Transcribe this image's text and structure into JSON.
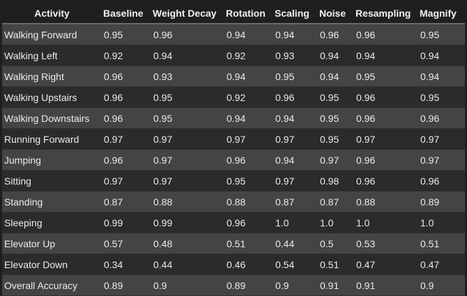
{
  "table": {
    "headers": [
      "Activity",
      "Baseline",
      "Weight Decay",
      "Rotation",
      "Scaling",
      "Noise",
      "Resampling",
      "Magnify"
    ],
    "rows": [
      [
        "Walking Forward",
        "0.95",
        "0.96",
        "0.94",
        "0.94",
        "0.96",
        "0.96",
        "0.95"
      ],
      [
        "Walking Left",
        "0.92",
        "0.94",
        "0.92",
        "0.93",
        "0.94",
        "0.94",
        "0.94"
      ],
      [
        "Walking Right",
        "0.96",
        "0.93",
        "0.94",
        "0.95",
        "0.94",
        "0.95",
        "0.94"
      ],
      [
        "Walking Upstairs",
        "0.96",
        "0.95",
        "0.92",
        "0.96",
        "0.95",
        "0.96",
        "0.95"
      ],
      [
        "Walking Downstairs",
        "0.96",
        "0.95",
        "0.94",
        "0.94",
        "0.95",
        "0.96",
        "0.96"
      ],
      [
        "Running Forward",
        "0.97",
        "0.97",
        "0.97",
        "0.97",
        "0.95",
        "0.97",
        "0.97"
      ],
      [
        "Jumping",
        "0.96",
        "0.97",
        "0.96",
        "0.94",
        "0.97",
        "0.96",
        "0.97"
      ],
      [
        "Sitting",
        "0.97",
        "0.97",
        "0.95",
        "0.97",
        "0.98",
        "0.96",
        "0.96"
      ],
      [
        "Standing",
        "0.87",
        "0.88",
        "0.88",
        "0.87",
        "0.87",
        "0.88",
        "0.89"
      ],
      [
        "Sleeping",
        "0.99",
        "0.99",
        "0.96",
        "1.0",
        "1.0",
        "1.0",
        "1.0"
      ],
      [
        "Elevator Up",
        "0.57",
        "0.48",
        "0.51",
        "0.44",
        "0.5",
        "0.53",
        "0.51"
      ],
      [
        "Elevator Down",
        "0.34",
        "0.44",
        "0.46",
        "0.54",
        "0.51",
        "0.47",
        "0.47"
      ],
      [
        "Overall Accuracy",
        "0.89",
        "0.9",
        "0.89",
        "0.9",
        "0.91",
        "0.91",
        "0.9"
      ]
    ]
  }
}
